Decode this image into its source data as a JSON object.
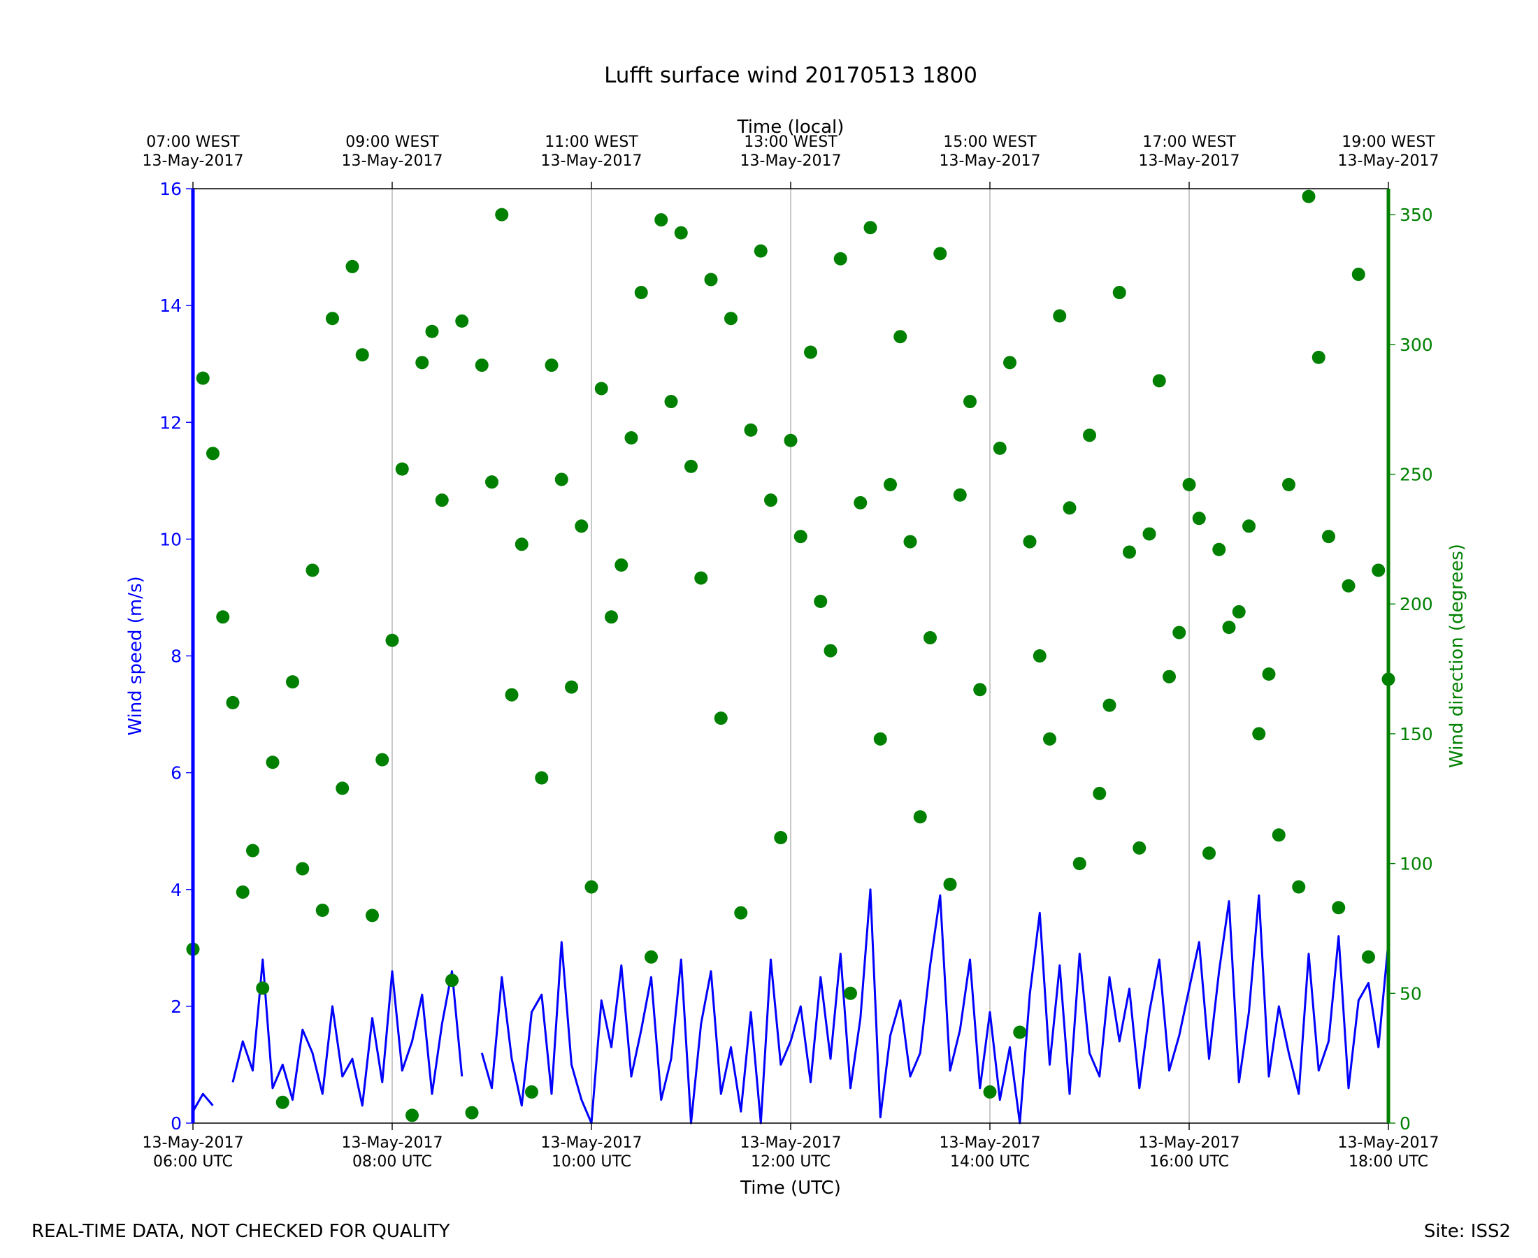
{
  "chart_data": {
    "type": "line",
    "title": "Lufft surface wind 20170513 1800",
    "xlabel": "Time (UTC)",
    "x2label": "Time (local)",
    "ylabel": "Wind speed (m/s)",
    "y2label": "Wind direction (degrees)",
    "annotations": [
      "REAL-TIME DATA, NOT CHECKED FOR QUALITY",
      "Site: ISS2"
    ],
    "xlim": [
      "2017-05-13 06:00",
      "2017-05-13 18:00"
    ],
    "xticks": [
      {
        "value": "2017-05-13 06:00",
        "label": "13-May-2017\n06:00 UTC"
      },
      {
        "value": "2017-05-13 08:00",
        "label": "13-May-2017\n08:00 UTC"
      },
      {
        "value": "2017-05-13 10:00",
        "label": "13-May-2017\n10:00 UTC"
      },
      {
        "value": "2017-05-13 12:00",
        "label": "13-May-2017\n12:00 UTC"
      },
      {
        "value": "2017-05-13 14:00",
        "label": "13-May-2017\n14:00 UTC"
      },
      {
        "value": "2017-05-13 16:00",
        "label": "13-May-2017\n16:00 UTC"
      },
      {
        "value": "2017-05-13 18:00",
        "label": "13-May-2017\n18:00 UTC"
      }
    ],
    "x2ticks": [
      {
        "value": "2017-05-13 06:00",
        "label": "07:00 WEST\n13-May-2017"
      },
      {
        "value": "2017-05-13 08:00",
        "label": "09:00 WEST\n13-May-2017"
      },
      {
        "value": "2017-05-13 10:00",
        "label": "11:00 WEST\n13-May-2017"
      },
      {
        "value": "2017-05-13 12:00",
        "label": "13:00 WEST\n13-May-2017"
      },
      {
        "value": "2017-05-13 14:00",
        "label": "15:00 WEST\n13-May-2017"
      },
      {
        "value": "2017-05-13 16:00",
        "label": "17:00 WEST\n13-May-2017"
      },
      {
        "value": "2017-05-13 18:00",
        "label": "19:00 WEST\n13-May-2017"
      }
    ],
    "ylim": [
      0,
      16
    ],
    "yticks": [
      0,
      2,
      4,
      6,
      8,
      10,
      12,
      14,
      16
    ],
    "y2lim": [
      0,
      360
    ],
    "y2ticks": [
      0,
      50,
      100,
      150,
      200,
      250,
      300,
      350
    ],
    "ycolor": "#0000ff",
    "y2color": "#008000",
    "grid": true,
    "x": [
      "2017-05-13 06:00",
      "2017-05-13 06:06",
      "2017-05-13 06:12",
      "2017-05-13 06:18",
      "2017-05-13 06:24",
      "2017-05-13 06:30",
      "2017-05-13 06:36",
      "2017-05-13 06:42",
      "2017-05-13 06:48",
      "2017-05-13 06:54",
      "2017-05-13 07:00",
      "2017-05-13 07:06",
      "2017-05-13 07:12",
      "2017-05-13 07:18",
      "2017-05-13 07:24",
      "2017-05-13 07:30",
      "2017-05-13 07:36",
      "2017-05-13 07:42",
      "2017-05-13 07:48",
      "2017-05-13 07:54",
      "2017-05-13 08:00",
      "2017-05-13 08:06",
      "2017-05-13 08:12",
      "2017-05-13 08:18",
      "2017-05-13 08:24",
      "2017-05-13 08:30",
      "2017-05-13 08:36",
      "2017-05-13 08:42",
      "2017-05-13 08:48",
      "2017-05-13 08:54",
      "2017-05-13 09:00",
      "2017-05-13 09:06",
      "2017-05-13 09:12",
      "2017-05-13 09:18",
      "2017-05-13 09:24",
      "2017-05-13 09:30",
      "2017-05-13 09:36",
      "2017-05-13 09:42",
      "2017-05-13 09:48",
      "2017-05-13 09:54",
      "2017-05-13 10:00",
      "2017-05-13 10:06",
      "2017-05-13 10:12",
      "2017-05-13 10:18",
      "2017-05-13 10:24",
      "2017-05-13 10:30",
      "2017-05-13 10:36",
      "2017-05-13 10:42",
      "2017-05-13 10:48",
      "2017-05-13 10:54",
      "2017-05-13 11:00",
      "2017-05-13 11:06",
      "2017-05-13 11:12",
      "2017-05-13 11:18",
      "2017-05-13 11:24",
      "2017-05-13 11:30",
      "2017-05-13 11:36",
      "2017-05-13 11:42",
      "2017-05-13 11:48",
      "2017-05-13 11:54",
      "2017-05-13 12:00",
      "2017-05-13 12:06",
      "2017-05-13 12:12",
      "2017-05-13 12:18",
      "2017-05-13 12:24",
      "2017-05-13 12:30",
      "2017-05-13 12:36",
      "2017-05-13 12:42",
      "2017-05-13 12:48",
      "2017-05-13 12:54",
      "2017-05-13 13:00",
      "2017-05-13 13:06",
      "2017-05-13 13:12",
      "2017-05-13 13:18",
      "2017-05-13 13:24",
      "2017-05-13 13:30",
      "2017-05-13 13:36",
      "2017-05-13 13:42",
      "2017-05-13 13:48",
      "2017-05-13 13:54",
      "2017-05-13 14:00",
      "2017-05-13 14:06",
      "2017-05-13 14:12",
      "2017-05-13 14:18",
      "2017-05-13 14:24",
      "2017-05-13 14:30",
      "2017-05-13 14:36",
      "2017-05-13 14:42",
      "2017-05-13 14:48",
      "2017-05-13 14:54",
      "2017-05-13 15:00",
      "2017-05-13 15:06",
      "2017-05-13 15:12",
      "2017-05-13 15:18",
      "2017-05-13 15:24",
      "2017-05-13 15:30",
      "2017-05-13 15:36",
      "2017-05-13 15:42",
      "2017-05-13 15:48",
      "2017-05-13 15:54",
      "2017-05-13 16:00",
      "2017-05-13 16:06",
      "2017-05-13 16:12",
      "2017-05-13 16:18",
      "2017-05-13 16:24",
      "2017-05-13 16:30",
      "2017-05-13 16:36",
      "2017-05-13 16:42",
      "2017-05-13 16:48",
      "2017-05-13 16:54",
      "2017-05-13 17:00",
      "2017-05-13 17:06",
      "2017-05-13 17:12",
      "2017-05-13 17:18",
      "2017-05-13 17:24",
      "2017-05-13 17:30",
      "2017-05-13 17:36",
      "2017-05-13 17:42",
      "2017-05-13 17:48",
      "2017-05-13 17:54",
      "2017-05-13 18:00"
    ],
    "series": [
      {
        "type": "line",
        "axis": "y",
        "color": "#0000ff",
        "values": [
          0.2,
          0.5,
          0.3,
          null,
          0.7,
          1.4,
          0.9,
          2.8,
          0.6,
          1.0,
          0.4,
          1.6,
          1.2,
          0.5,
          2.0,
          0.8,
          1.1,
          0.3,
          1.8,
          0.7,
          2.6,
          0.9,
          1.4,
          2.2,
          0.5,
          1.7,
          2.6,
          0.8,
          null,
          1.2,
          0.6,
          2.5,
          1.1,
          0.3,
          1.9,
          2.2,
          0.5,
          3.1,
          1.0,
          0.4,
          0.0,
          2.1,
          1.3,
          2.7,
          0.8,
          1.6,
          2.5,
          0.4,
          1.1,
          2.8,
          0.0,
          1.7,
          2.6,
          0.5,
          1.3,
          0.2,
          1.9,
          0.0,
          2.8,
          1.0,
          1.4,
          2.0,
          0.7,
          2.5,
          1.1,
          2.9,
          0.6,
          1.8,
          4.0,
          0.1,
          1.5,
          2.1,
          0.8,
          1.2,
          2.7,
          3.9,
          0.9,
          1.6,
          2.8,
          0.6,
          1.9,
          0.4,
          1.3,
          0.0,
          2.2,
          3.6,
          1.0,
          2.7,
          0.5,
          2.9,
          1.2,
          0.8,
          2.5,
          1.4,
          2.3,
          0.6,
          1.9,
          2.8,
          0.9,
          1.5,
          2.3,
          3.1,
          1.1,
          2.6,
          3.8,
          0.7,
          1.9,
          3.9,
          0.8,
          2.0,
          1.2,
          0.5,
          2.9,
          0.9,
          1.4,
          3.2,
          0.6,
          2.1,
          2.4,
          1.3,
          3.1
        ]
      },
      {
        "type": "scatter",
        "axis": "y2",
        "color": "#008000",
        "values": [
          67,
          287,
          258,
          195,
          162,
          89,
          105,
          52,
          139,
          8,
          170,
          98,
          213,
          82,
          310,
          129,
          330,
          296,
          80,
          140,
          186,
          252,
          3,
          293,
          305,
          240,
          55,
          309,
          4,
          292,
          247,
          350,
          165,
          223,
          12,
          133,
          292,
          248,
          168,
          230,
          91,
          283,
          195,
          215,
          264,
          320,
          64,
          348,
          278,
          343,
          253,
          210,
          325,
          156,
          310,
          81,
          267,
          336,
          240,
          110,
          263,
          226,
          297,
          201,
          182,
          333,
          50,
          239,
          345,
          148,
          246,
          303,
          224,
          118,
          187,
          335,
          92,
          242,
          278,
          167,
          12,
          260,
          293,
          35,
          224,
          180,
          148,
          311,
          237,
          100,
          265,
          127,
          161,
          320,
          220,
          106,
          227,
          286,
          172,
          189,
          246,
          233,
          104,
          221,
          191,
          197,
          230,
          150,
          173,
          111,
          246,
          91,
          357,
          295,
          226,
          83,
          207,
          327,
          64,
          213,
          171
        ]
      }
    ]
  }
}
